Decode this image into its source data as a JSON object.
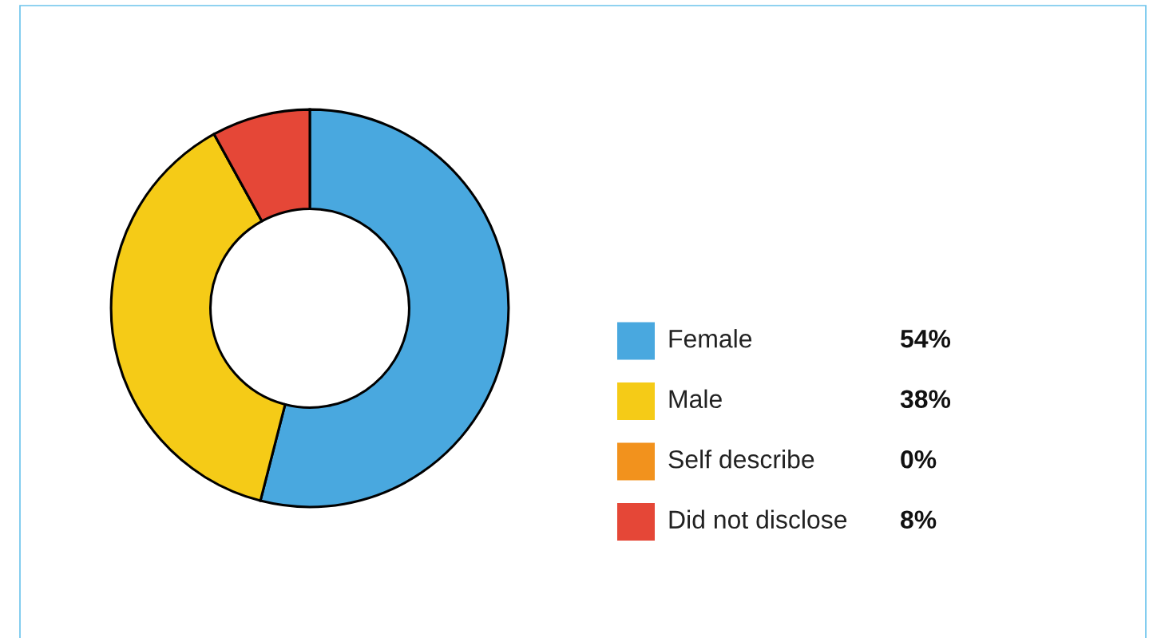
{
  "chart_data": {
    "type": "donut",
    "categories": [
      "Female",
      "Male",
      "Self describe",
      "Did not disclose"
    ],
    "values": [
      54,
      38,
      0,
      8
    ],
    "colors": [
      "#49a8df",
      "#f5cb17",
      "#f2921d",
      "#e54737"
    ],
    "value_labels": [
      "54%",
      "38%",
      "0%",
      "8%"
    ],
    "legend": "right"
  }
}
